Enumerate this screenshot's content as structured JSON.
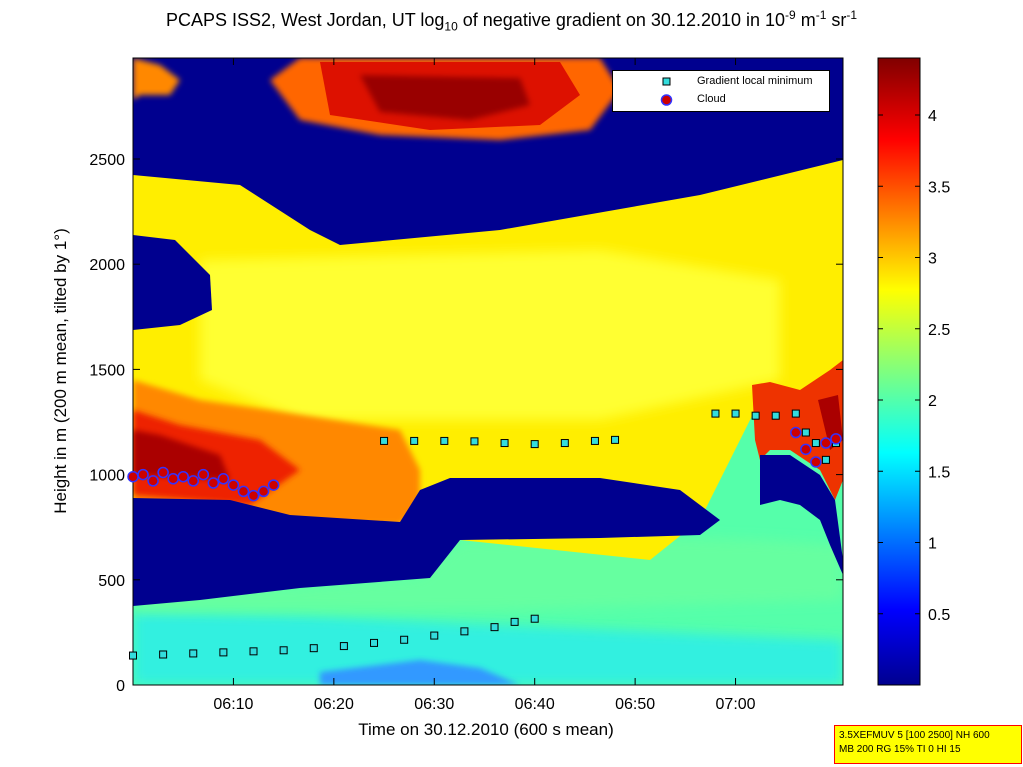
{
  "title": {
    "part1": "PCAPS ISS2, West Jordan, UT log",
    "sub": "10",
    "part2": " of negative gradient on 30.12.2010 in 10",
    "sup1": "-9",
    "part3": " m",
    "sup2": "-1",
    "part4": " sr",
    "sup3": "-1"
  },
  "legend": {
    "items": [
      {
        "label": "Gradient local minimum",
        "marker": "square",
        "color": "#33dddd"
      },
      {
        "label": "Cloud",
        "marker": "circle",
        "color": "#cc0000",
        "edge": "#3333ff"
      }
    ]
  },
  "params": {
    "line1": "3.5XEFMUV 5 [100 2500] NH 600",
    "line2": "MB 200 RG 15% TI 0 HI 15"
  },
  "chart_data": {
    "type": "heatmap",
    "xlabel": "Time on 30.12.2010 (600 s mean)",
    "ylabel": "Height in m (200 m mean, tilted by 1°)",
    "x_range_min": [
      0,
      70.7
    ],
    "x_ticks": [
      {
        "v": 10,
        "label": "06:10"
      },
      {
        "v": 20,
        "label": "06:20"
      },
      {
        "v": 30,
        "label": "06:30"
      },
      {
        "v": 40,
        "label": "06:40"
      },
      {
        "v": 50,
        "label": "06:50"
      },
      {
        "v": 60,
        "label": "07:00"
      }
    ],
    "ylim": [
      0,
      2980
    ],
    "y_ticks": [
      0,
      500,
      1000,
      1500,
      2000,
      2500
    ],
    "colorbar": {
      "range": [
        0,
        4.4
      ],
      "ticks": [
        0.5,
        1,
        1.5,
        2,
        2.5,
        3,
        3.5,
        4
      ],
      "colormap": "jet"
    },
    "series": [
      {
        "name": "Gradient local minimum",
        "points": [
          [
            0,
            140
          ],
          [
            3,
            145
          ],
          [
            6,
            150
          ],
          [
            9,
            155
          ],
          [
            12,
            160
          ],
          [
            15,
            165
          ],
          [
            18,
            175
          ],
          [
            21,
            185
          ],
          [
            24,
            200
          ],
          [
            27,
            215
          ],
          [
            30,
            235
          ],
          [
            33,
            255
          ],
          [
            36,
            275
          ],
          [
            38,
            300
          ],
          [
            40,
            315
          ],
          [
            25,
            1160
          ],
          [
            28,
            1160
          ],
          [
            31,
            1160
          ],
          [
            34,
            1158
          ],
          [
            37,
            1150
          ],
          [
            40,
            1145
          ],
          [
            43,
            1150
          ],
          [
            46,
            1160
          ],
          [
            48,
            1165
          ],
          [
            58,
            1290
          ],
          [
            60,
            1290
          ],
          [
            62,
            1280
          ],
          [
            64,
            1280
          ],
          [
            66,
            1290
          ],
          [
            67,
            1200
          ],
          [
            68,
            1150
          ],
          [
            69,
            1070
          ],
          [
            70,
            1150
          ]
        ]
      },
      {
        "name": "Cloud",
        "points": [
          [
            0,
            990
          ],
          [
            1,
            1000
          ],
          [
            2,
            970
          ],
          [
            3,
            1010
          ],
          [
            4,
            980
          ],
          [
            5,
            990
          ],
          [
            6,
            970
          ],
          [
            7,
            1000
          ],
          [
            8,
            960
          ],
          [
            9,
            980
          ],
          [
            10,
            950
          ],
          [
            11,
            920
          ],
          [
            12,
            900
          ],
          [
            13,
            920
          ],
          [
            14,
            950
          ],
          [
            66,
            1200
          ],
          [
            67,
            1120
          ],
          [
            68,
            1060
          ],
          [
            69,
            1150
          ],
          [
            70,
            1170
          ]
        ]
      }
    ]
  }
}
